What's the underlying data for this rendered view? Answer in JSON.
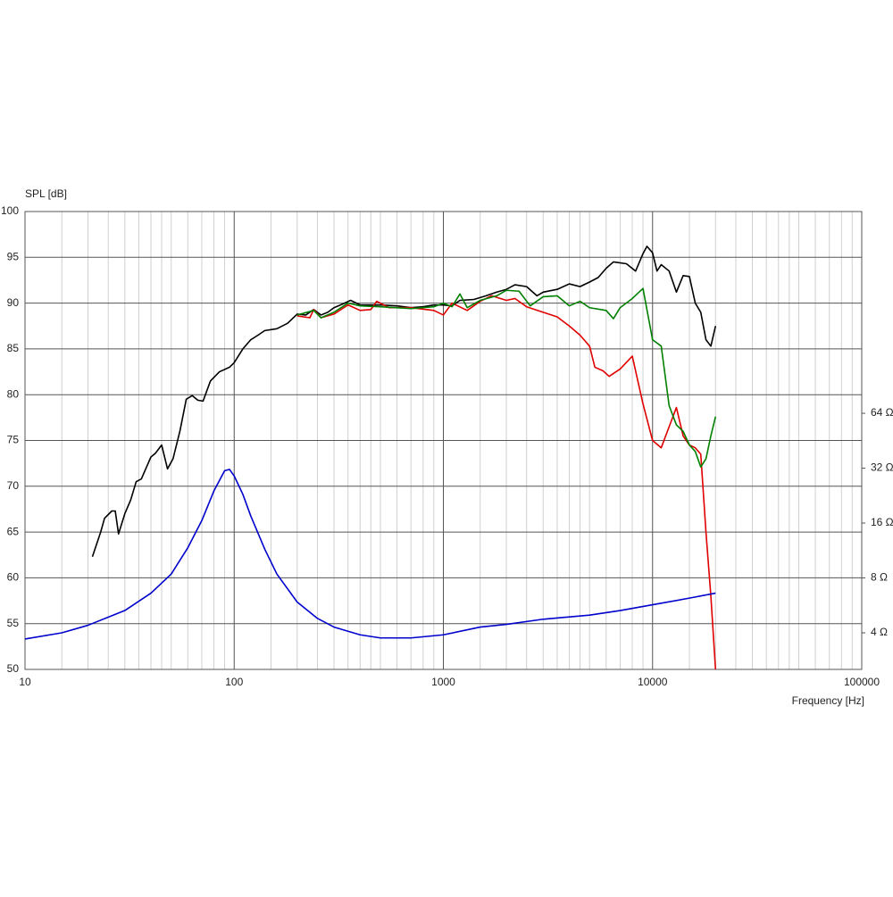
{
  "chart_data": {
    "type": "line",
    "y_label": "SPL [dB]",
    "x_label": "Frequency [Hz]",
    "xscale": "log",
    "xlim": [
      10,
      100000
    ],
    "xticks": [
      10,
      100,
      1000,
      10000,
      100000
    ],
    "ylim": [
      50,
      100
    ],
    "yticks": [
      50,
      55,
      60,
      65,
      70,
      75,
      80,
      85,
      90,
      95,
      100
    ],
    "y2scale": "log",
    "y2lim": [
      2.52,
      818
    ],
    "y2ticks": [
      {
        "value": 4,
        "label": "4 Ω"
      },
      {
        "value": 8,
        "label": "8 Ω"
      },
      {
        "value": 16,
        "label": "16 Ω"
      },
      {
        "value": 32,
        "label": "32 Ω"
      },
      {
        "value": 64,
        "label": "64 Ω"
      }
    ],
    "grid": true,
    "series": [
      {
        "color": "#000000",
        "x": [
          21,
          23,
          24,
          26,
          27,
          28,
          30,
          32,
          34,
          36,
          40,
          42,
          45,
          48,
          51,
          55,
          59,
          63,
          67,
          71,
          77,
          85,
          95,
          100,
          110,
          120,
          130,
          140,
          160,
          180,
          200,
          220,
          240,
          260,
          280,
          300,
          330,
          360,
          400,
          450,
          500,
          600,
          700,
          800,
          900,
          1000,
          1100,
          1200,
          1400,
          1600,
          1800,
          2000,
          2200,
          2500,
          2800,
          3000,
          3500,
          4000,
          4500,
          5000,
          5500,
          6000,
          6500,
          7500,
          8300,
          9000,
          9400,
          10000,
          10500,
          11000,
          12000,
          13000,
          14000,
          15000,
          16000,
          17000,
          18000,
          19000,
          20000
        ],
        "values": [
          62.3,
          65,
          66.5,
          67.3,
          67.3,
          64.8,
          67,
          68.5,
          70.5,
          70.8,
          73.2,
          73.6,
          74.5,
          71.9,
          73,
          76,
          79.5,
          79.9,
          79.4,
          79.3,
          81.5,
          82.5,
          83,
          83.5,
          85,
          86,
          86.5,
          87,
          87.2,
          87.8,
          88.8,
          88.7,
          89.3,
          88.7,
          89,
          89.5,
          89.9,
          90.3,
          89.8,
          89.8,
          89.8,
          89.7,
          89.5,
          89.6,
          89.8,
          89.8,
          89.7,
          90.3,
          90.4,
          90.8,
          91.2,
          91.5,
          92,
          91.8,
          90.8,
          91.2,
          91.5,
          92.1,
          91.8,
          92.3,
          92.8,
          93.8,
          94.5,
          94.3,
          93.5,
          95.4,
          96.2,
          95.5,
          93.5,
          94.2,
          93.5,
          91.2,
          93,
          92.9,
          90,
          89,
          86,
          85.3,
          87.5
        ]
      },
      {
        "color": "#e00000",
        "x": [
          200,
          230,
          240,
          260,
          300,
          350,
          400,
          450,
          480,
          550,
          700,
          900,
          1000,
          1100,
          1300,
          1500,
          1700,
          2000,
          2200,
          2500,
          3000,
          3500,
          4000,
          4500,
          5000,
          5300,
          5800,
          6200,
          7000,
          8000,
          9000,
          10000,
          11000,
          12000,
          13000,
          14000,
          15000,
          16000,
          17000,
          18000,
          19000,
          20000
        ],
        "values": [
          88.6,
          88.4,
          89.3,
          88.4,
          88.8,
          89.8,
          89.2,
          89.3,
          90.2,
          89.5,
          89.5,
          89.2,
          88.7,
          90,
          89.2,
          90.2,
          90.8,
          90.3,
          90.5,
          89.6,
          89,
          88.5,
          87.5,
          86.5,
          85.3,
          83,
          82.6,
          82,
          82.8,
          84.2,
          79,
          75,
          74.2,
          76.5,
          78.6,
          75.5,
          74.5,
          74.2,
          73.5,
          65,
          58,
          50
        ]
      },
      {
        "color": "#008000",
        "x": [
          200,
          240,
          260,
          300,
          350,
          400,
          500,
          700,
          900,
          1000,
          1100,
          1200,
          1300,
          1500,
          1800,
          2000,
          2300,
          2600,
          3000,
          3500,
          4000,
          4500,
          5000,
          6000,
          6500,
          7000,
          8000,
          9000,
          10000,
          11000,
          12000,
          13000,
          14000,
          15000,
          16000,
          17000,
          18000,
          19000,
          20000
        ],
        "values": [
          88.7,
          89.2,
          88.4,
          89,
          90,
          89.7,
          89.6,
          89.4,
          89.6,
          90,
          89.6,
          91,
          89.5,
          90.3,
          90.8,
          91.4,
          91.3,
          89.7,
          90.7,
          90.8,
          89.7,
          90.2,
          89.5,
          89.2,
          88.3,
          89.5,
          90.5,
          91.6,
          86,
          85.3,
          78.8,
          76.7,
          76,
          74.5,
          73.8,
          72.1,
          73,
          75.5,
          77.6
        ]
      },
      {
        "color": "#0000cc",
        "axis": "y2",
        "x": [
          10,
          15,
          20,
          30,
          40,
          50,
          60,
          70,
          80,
          90,
          95,
          100,
          110,
          120,
          140,
          160,
          200,
          250,
          300,
          400,
          500,
          700,
          1000,
          1500,
          2000,
          3000,
          5000,
          7000,
          10000,
          15000,
          20000
        ],
        "values": [
          3.7,
          4.0,
          4.4,
          5.3,
          6.6,
          8.4,
          11.7,
          16.5,
          24,
          31,
          31.5,
          29,
          23,
          17.5,
          11.5,
          8.4,
          5.9,
          4.8,
          4.3,
          3.9,
          3.75,
          3.75,
          3.9,
          4.3,
          4.45,
          4.75,
          5.0,
          5.3,
          5.7,
          6.2,
          6.6
        ]
      }
    ]
  }
}
